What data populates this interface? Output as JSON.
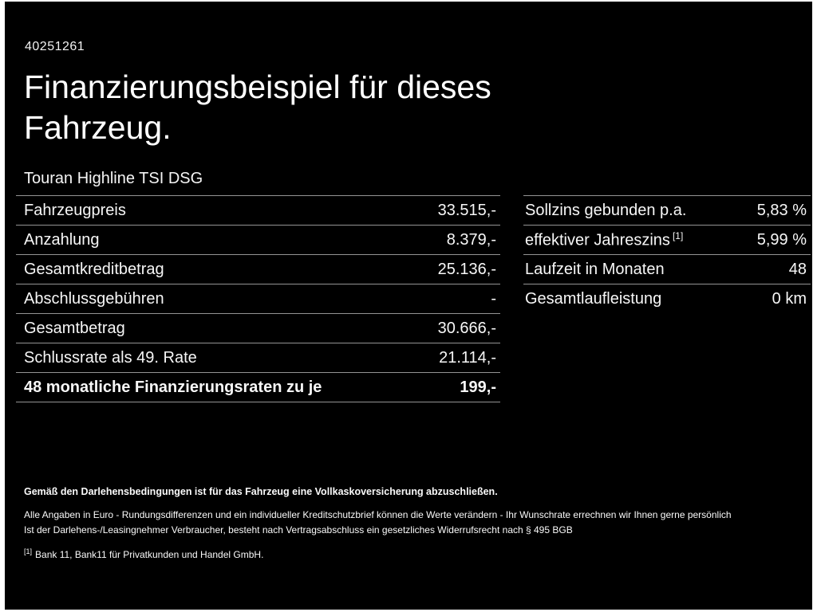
{
  "page": {
    "id": "40251261",
    "title_lines": [
      "Finanzierungsbeispiel für dieses",
      "Fahrzeug."
    ],
    "subtitle": "Touran Highline TSI DSG"
  },
  "left_table": {
    "rows": [
      {
        "label": "Fahrzeugpreis",
        "value": "33.515,-"
      },
      {
        "label": "Anzahlung",
        "value": "8.379,-"
      },
      {
        "label": "Gesamtkreditbetrag",
        "value": "25.136,-"
      },
      {
        "label": "Abschlussgebühren",
        "value": "-"
      },
      {
        "label": "Gesamtbetrag",
        "value": "30.666,-"
      },
      {
        "label": "Schlussrate als 49. Rate",
        "value": "21.114,-"
      },
      {
        "label": "48 monatliche Finanzierungsraten zu je",
        "value": "199,-"
      }
    ]
  },
  "right_table": {
    "rows": [
      {
        "label": "Sollzins gebunden p.a.",
        "value": "5,83 %"
      },
      {
        "label": "effektiver Jahreszins",
        "sup": "[1]",
        "value": "5,99 %"
      },
      {
        "label": "Laufzeit in Monaten",
        "value": "48"
      },
      {
        "label": "Gesamtlaufleistung",
        "value": "0 km"
      }
    ]
  },
  "footer": {
    "bold_line": "Gemäß den Darlehensbedingungen ist für das Fahrzeug eine Vollkaskoversicherung abzuschließen.",
    "line2": "Alle Angaben in Euro - Rundungsdifferenzen und ein individueller Kreditschutzbrief können die Werte verändern - Ihr Wunschrate errechnen wir Ihnen gerne persönlich",
    "line3": "Ist der Darlehens-/Leasingnehmer Verbraucher, besteht nach Vertragsabschluss ein gesetzliches Widerrufsrecht nach § 495 BGB",
    "footnote_marker": "[1]",
    "footnote_text": "Bank 11, Bank11 für Privatkunden und Handel GmbH."
  },
  "colors": {
    "background": "#000000",
    "text": "#ffffff",
    "divider": "#949494",
    "frame": "#ffffff"
  }
}
